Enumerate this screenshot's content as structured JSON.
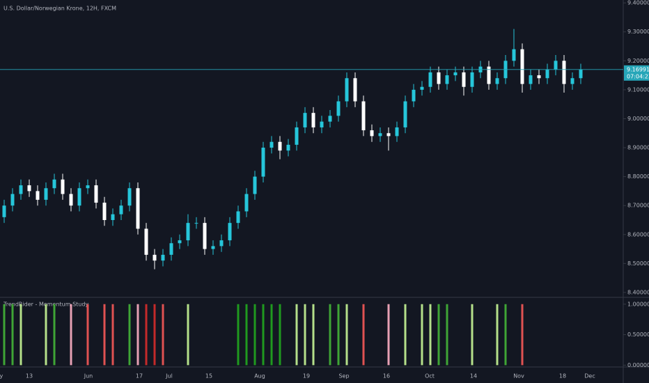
{
  "chart_data": {
    "type": "candlestick",
    "title": "U.S. Dollar/Norwegian Krone, 12H, FXCM",
    "up_color": "#26c6da",
    "down_color": "#ffffff",
    "open": [
      8.66,
      8.7,
      8.74,
      8.77,
      8.75,
      8.72,
      8.76,
      8.79,
      8.74,
      8.7,
      8.76,
      8.77,
      8.71,
      8.65,
      8.67,
      8.7,
      8.76,
      8.62,
      8.53,
      8.51,
      8.53,
      8.57,
      8.58,
      8.64,
      8.64,
      8.55,
      8.56,
      8.58,
      8.64,
      8.68,
      8.74,
      8.8,
      8.9,
      8.92,
      8.89,
      8.91,
      8.97,
      9.02,
      8.97,
      8.99,
      9.01,
      9.06,
      9.14,
      9.06,
      8.96,
      8.94,
      8.95,
      8.94,
      8.97,
      9.06,
      9.1,
      9.11,
      9.16,
      9.12,
      9.15,
      9.16,
      9.11,
      9.16,
      9.18,
      9.12,
      9.14,
      9.2,
      9.24,
      9.12,
      9.15,
      9.14,
      9.17,
      9.2,
      9.12,
      9.14
    ],
    "high": [
      8.72,
      8.76,
      8.79,
      8.79,
      8.77,
      8.78,
      8.81,
      8.81,
      8.76,
      8.78,
      8.79,
      8.79,
      8.73,
      8.69,
      8.72,
      8.78,
      8.78,
      8.64,
      8.55,
      8.55,
      8.59,
      8.6,
      8.67,
      8.66,
      8.66,
      8.58,
      8.6,
      8.66,
      8.7,
      8.76,
      8.82,
      8.92,
      8.94,
      8.94,
      8.93,
      8.99,
      9.04,
      9.04,
      9.01,
      9.03,
      9.08,
      9.16,
      9.16,
      9.08,
      8.98,
      8.97,
      8.97,
      8.99,
      9.08,
      9.12,
      9.13,
      9.18,
      9.18,
      9.17,
      9.18,
      9.18,
      9.18,
      9.2,
      9.2,
      9.16,
      9.22,
      9.31,
      9.26,
      9.17,
      9.17,
      9.19,
      9.22,
      9.22,
      9.16,
      9.19
    ],
    "low": [
      8.64,
      8.68,
      8.72,
      8.73,
      8.7,
      8.7,
      8.74,
      8.72,
      8.68,
      8.68,
      8.74,
      8.69,
      8.63,
      8.63,
      8.65,
      8.68,
      8.6,
      8.51,
      8.48,
      8.49,
      8.51,
      8.55,
      8.56,
      8.62,
      8.53,
      8.53,
      8.54,
      8.56,
      8.62,
      8.66,
      8.72,
      8.78,
      8.88,
      8.86,
      8.87,
      8.89,
      8.95,
      8.95,
      8.95,
      8.97,
      8.99,
      9.04,
      9.04,
      8.94,
      8.92,
      8.92,
      8.89,
      8.92,
      8.95,
      9.04,
      9.08,
      9.09,
      9.1,
      9.1,
      9.13,
      9.08,
      9.09,
      9.14,
      9.1,
      9.1,
      9.12,
      9.18,
      9.09,
      9.1,
      9.12,
      9.12,
      9.15,
      9.09,
      9.1,
      9.12
    ],
    "close": [
      8.7,
      8.74,
      8.77,
      8.75,
      8.72,
      8.76,
      8.79,
      8.74,
      8.7,
      8.76,
      8.77,
      8.71,
      8.65,
      8.67,
      8.7,
      8.76,
      8.62,
      8.53,
      8.51,
      8.53,
      8.57,
      8.58,
      8.64,
      8.64,
      8.55,
      8.56,
      8.58,
      8.64,
      8.68,
      8.74,
      8.8,
      8.9,
      8.92,
      8.89,
      8.91,
      8.97,
      9.02,
      8.97,
      8.99,
      9.01,
      9.06,
      9.14,
      9.06,
      8.96,
      8.94,
      8.95,
      8.94,
      8.97,
      9.06,
      9.1,
      9.11,
      9.16,
      9.12,
      9.15,
      9.16,
      9.11,
      9.16,
      9.18,
      9.12,
      9.14,
      9.2,
      9.24,
      9.12,
      9.15,
      9.14,
      9.17,
      9.2,
      9.12,
      9.14,
      9.17
    ],
    "ylim": [
      8.383,
      9.41
    ],
    "yticks": [
      {
        "value": 8.4,
        "label": "8.40000"
      },
      {
        "value": 8.5,
        "label": "8.50000"
      },
      {
        "value": 8.6,
        "label": "8.60000"
      },
      {
        "value": 8.7,
        "label": "8.70000"
      },
      {
        "value": 8.8,
        "label": "8.80000"
      },
      {
        "value": 8.9,
        "label": "8.90000"
      },
      {
        "value": 9.0,
        "label": "9.00000"
      },
      {
        "value": 9.1,
        "label": "9.10000"
      },
      {
        "value": 9.2,
        "label": "9.20000"
      },
      {
        "value": 9.3,
        "label": "9.30000"
      },
      {
        "value": 9.4,
        "label": "9.40000"
      }
    ],
    "last_price": {
      "value": 9.16991,
      "label": "9.16991"
    },
    "countdown": "07:04:23",
    "price_line_color": "#26a6b8",
    "x_labels": [
      "May",
      "13",
      "Jun",
      "17",
      "Jul",
      "15",
      "Aug",
      "19",
      "Sep",
      "16",
      "Oct",
      "14",
      "Nov",
      "18",
      "Dec"
    ],
    "indicator": {
      "title": "TrendRider - Momentum Study",
      "ylim": [
        -0.03,
        1.1
      ],
      "yticks": [
        {
          "value": 0,
          "label": "0.00000"
        },
        {
          "value": 0.5,
          "label": "0.50000"
        },
        {
          "value": 1,
          "label": "1.00000"
        }
      ],
      "values": [
        1,
        1,
        1,
        null,
        null,
        1,
        1,
        null,
        1,
        null,
        1,
        null,
        1,
        1,
        null,
        1,
        1,
        1,
        1,
        1,
        null,
        null,
        1,
        null,
        null,
        null,
        null,
        null,
        1,
        1,
        1,
        1,
        1,
        1,
        null,
        1,
        1,
        1,
        null,
        1,
        1,
        1,
        null,
        1,
        null,
        null,
        1,
        null,
        1,
        null,
        1,
        1,
        1,
        1,
        null,
        null,
        1,
        null,
        null,
        1,
        1,
        null,
        1,
        null,
        null,
        null,
        null,
        null,
        null,
        null
      ],
      "colors": [
        "#3fa535",
        "#3fa535",
        "#b5e08a",
        null,
        null,
        "#b5e08a",
        "#3fa535",
        null,
        "#e7a0b4",
        null,
        "#e05252",
        null,
        "#e05252",
        "#e05252",
        null,
        "#3fa535",
        "#e7a0b4",
        "#c42a2a",
        "#c42a2a",
        "#e05252",
        null,
        null,
        "#b5e08a",
        null,
        null,
        null,
        null,
        null,
        "#1f9a1f",
        "#1f9a1f",
        "#1f9a1f",
        "#1f9a1f",
        "#1f9a1f",
        "#1f9a1f",
        null,
        "#b5e08a",
        "#b5e08a",
        "#b5e08a",
        null,
        "#3fa535",
        "#3fa535",
        "#b5e08a",
        null,
        "#e05252",
        null,
        null,
        "#e7a0b4",
        null,
        "#b5e08a",
        null,
        "#b5e08a",
        "#b5e08a",
        "#3fa535",
        "#3fa535",
        null,
        null,
        "#b5e08a",
        null,
        null,
        "#b5e08a",
        "#3fa535",
        null,
        "#e05252",
        null,
        null,
        null,
        null,
        null,
        null,
        null
      ]
    }
  }
}
